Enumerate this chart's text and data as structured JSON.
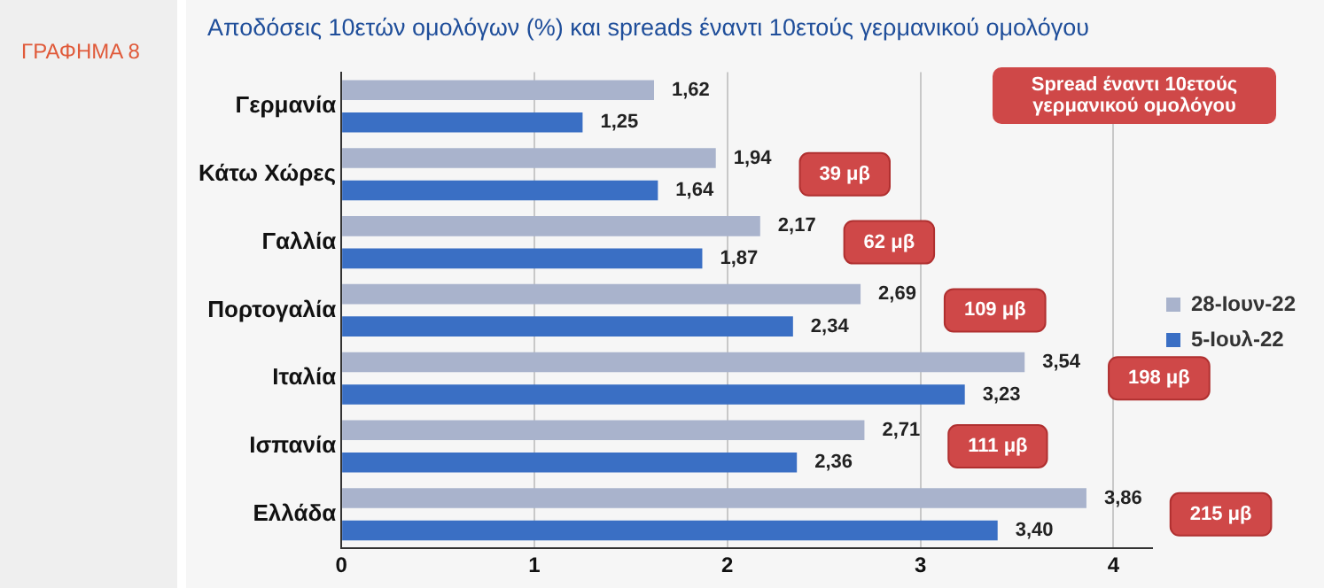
{
  "chart_data": {
    "type": "bar",
    "orientation": "horizontal",
    "title": "Αποδόσεις 10ετών ομολόγων (%) και spreads έναντι 10ετούς γερμανικού ομολόγου",
    "categories": [
      "Γερμανία",
      "Κάτω Χώρες",
      "Γαλλία",
      "Πορτογαλία",
      "Ιταλία",
      "Ισπανία",
      "Ελλάδα"
    ],
    "series": [
      {
        "name": "28-Ιουν-22",
        "color": "#a9b3cc",
        "values": [
          1.62,
          1.94,
          2.17,
          2.69,
          3.54,
          2.71,
          3.86
        ],
        "value_labels": [
          "1,62",
          "1,94",
          "2,17",
          "2,69",
          "3,54",
          "2,71",
          "3,86"
        ]
      },
      {
        "name": "5-Ιουλ-22",
        "color": "#3a6fc4",
        "values": [
          1.25,
          1.64,
          1.87,
          2.34,
          3.23,
          2.36,
          3.4
        ],
        "value_labels": [
          "1,25",
          "1,64",
          "1,87",
          "2,34",
          "3,23",
          "2,36",
          "3,40"
        ]
      }
    ],
    "xlim": [
      0,
      4.2
    ],
    "xticks": [
      0,
      1,
      2,
      3,
      4
    ],
    "grid": "x",
    "legend": "right",
    "annotations": [
      "ΓΡΑΦΗΜΑ 8",
      "Spread έναντι 10ετούς γερμανικού ομολόγου",
      "39 μβ",
      "62 μβ",
      "109 μβ",
      "198 μβ",
      "111 μβ",
      "215 μβ"
    ]
  }
}
